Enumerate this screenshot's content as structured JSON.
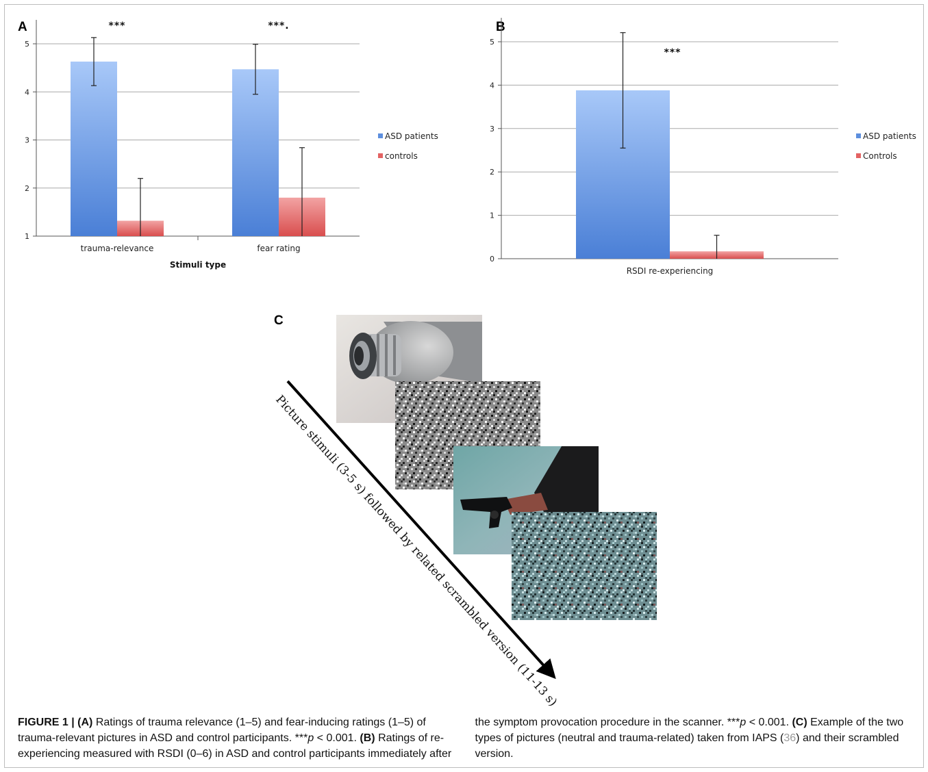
{
  "chart_data": [
    {
      "panel": "A",
      "type": "bar",
      "categories": [
        "trauma-relevance",
        "fear rating"
      ],
      "xlabel": "Stimuli type",
      "ylim": [
        1,
        5
      ],
      "yticks": [
        1,
        2,
        3,
        4,
        5
      ],
      "series": [
        {
          "name": "ASD patients",
          "color": "#5d8fde",
          "values": [
            4.63,
            4.47
          ],
          "error": [
            0.5,
            0.52
          ]
        },
        {
          "name": "controls",
          "color": "#e36363",
          "values": [
            1.32,
            1.8
          ],
          "error": [
            0.88,
            1.04
          ]
        }
      ],
      "significance": [
        "***",
        "***."
      ],
      "legend": "right"
    },
    {
      "panel": "B",
      "type": "bar",
      "categories": [
        "RSDI re-experiencing"
      ],
      "ylim": [
        0,
        5
      ],
      "yticks": [
        0,
        1,
        2,
        3,
        4,
        5
      ],
      "series": [
        {
          "name": "ASD patients",
          "color": "#5d8fde",
          "values": [
            3.88
          ],
          "error": [
            1.33
          ]
        },
        {
          "name": "Controls",
          "color": "#e36363",
          "values": [
            0.17
          ],
          "error": [
            0.37
          ]
        }
      ],
      "significance": [
        "***"
      ],
      "legend": "right"
    }
  ],
  "panel_c": {
    "label": "C",
    "arrow_text": "Picture stimuli (3-5 s) followed by related scrambled version (11-13 s)"
  },
  "caption": {
    "fig_label": "FIGURE 1 | (A)",
    "p1": " Ratings of trauma relevance (1–5) and fear-inducing ratings (1–5) of trauma-relevant pictures in ASD and control participants. ***",
    "p_italic": "p",
    "p1b": " < 0.001. ",
    "b_label": "(B)",
    "p2": " Ratings of re-experiencing measured with RSDI (0–6) in ASD and control participants immediately after the symptom provocation procedure in the scanner. ***",
    "p2b": " < 0.001. ",
    "c_label": "(C)",
    "p3": " Example of the two types of pictures (neutral and trauma-related) taken from IAPS (",
    "ref": "36",
    "p4": ") and their scrambled version."
  }
}
